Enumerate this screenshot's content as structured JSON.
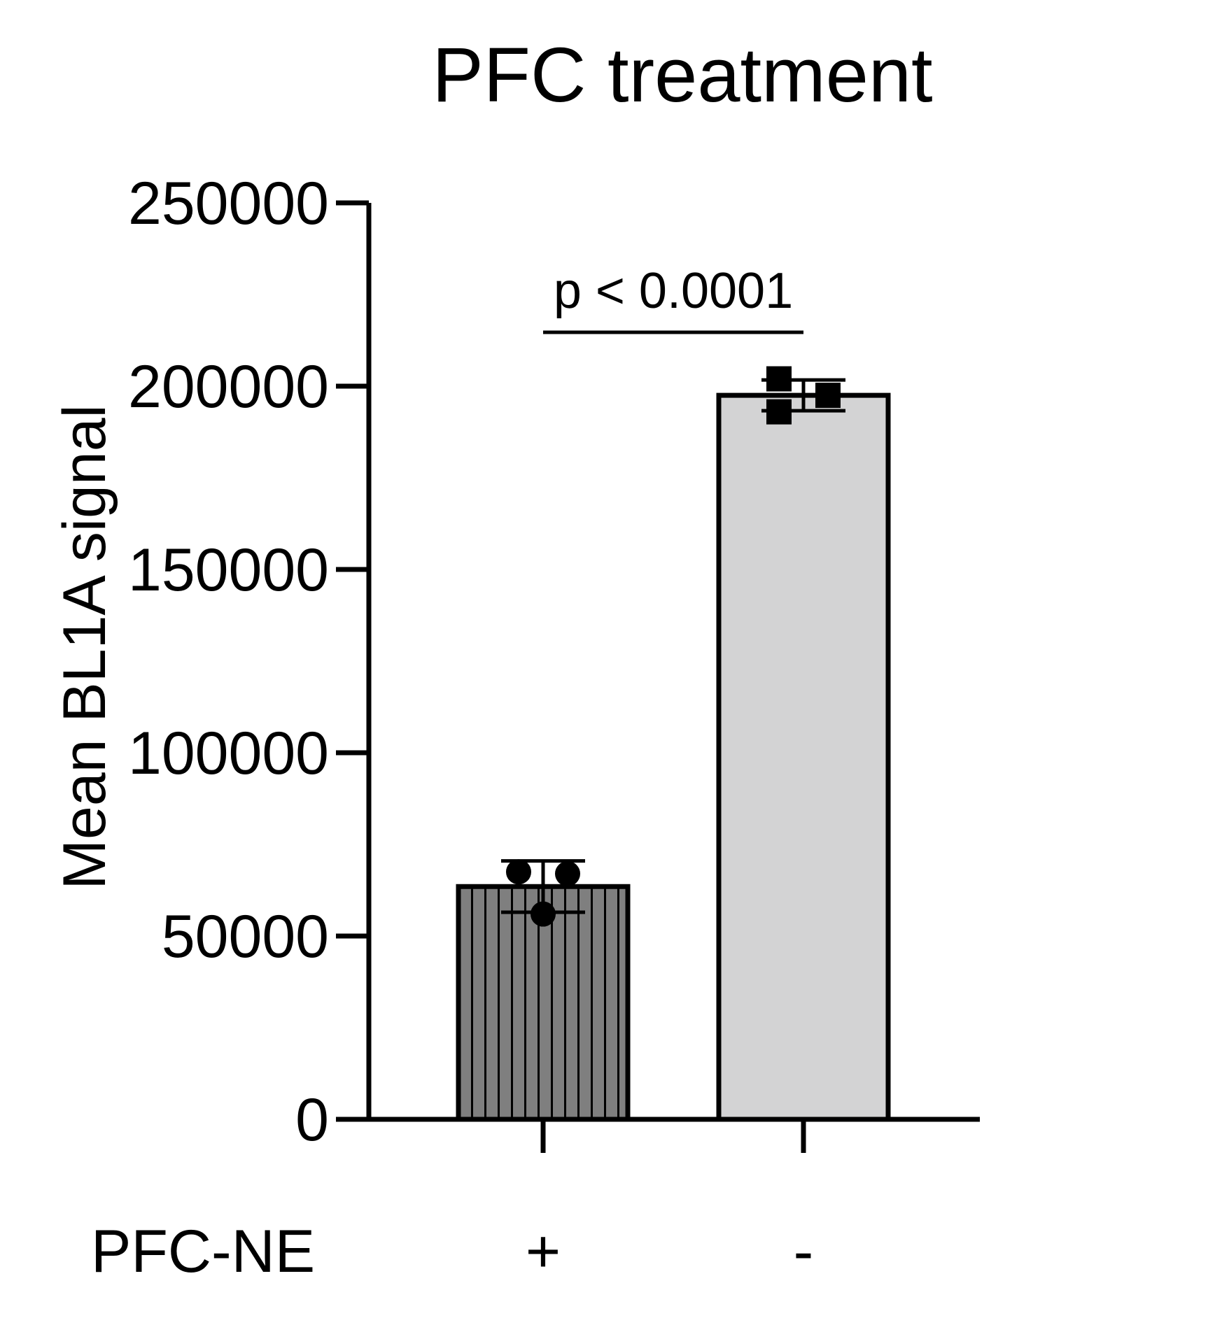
{
  "chart_data": {
    "type": "bar",
    "title": "PFC treatment",
    "ylabel": "Mean BL1A signal",
    "x_row_label": "PFC-NE",
    "categories": [
      "+",
      "-"
    ],
    "values": [
      63500,
      197500
    ],
    "error": [
      7000,
      4200
    ],
    "points": [
      [
        67500,
        67000,
        56000
      ],
      [
        202000,
        193000,
        197500
      ]
    ],
    "point_markers": [
      "circle",
      "square"
    ],
    "bar_fill": [
      "#7f7f7f",
      "#d3d3d4"
    ],
    "bar_pattern": [
      "vertical-lines",
      "none"
    ],
    "ylim": [
      0,
      250000
    ],
    "yticks": [
      0,
      50000,
      100000,
      150000,
      200000,
      250000
    ],
    "ytick_labels": [
      "0",
      "50000",
      "100000",
      "150000",
      "200000",
      "250000"
    ],
    "annotation": {
      "text": "p < 0.0001",
      "between": [
        0,
        1
      ]
    },
    "grid": false,
    "legend": "none"
  }
}
